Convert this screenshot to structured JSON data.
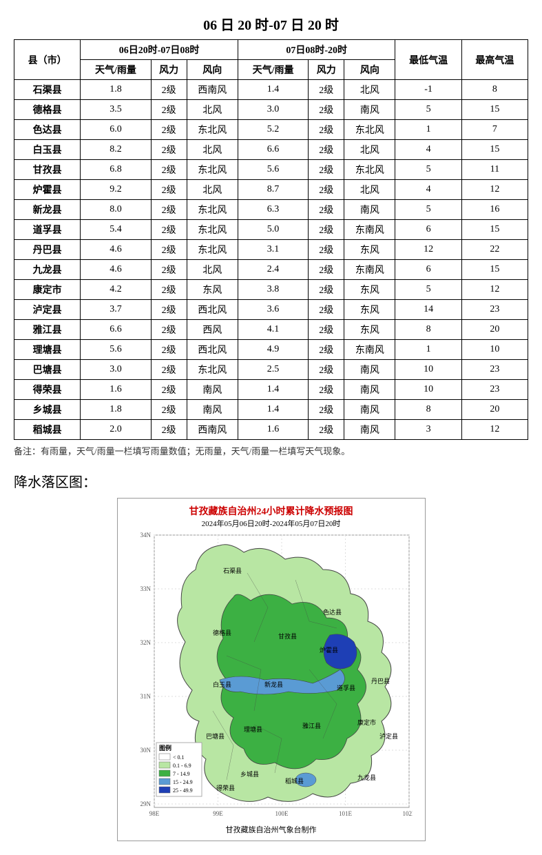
{
  "title": "06 日 20 时-07 日 20 时",
  "table": {
    "headers": {
      "county": "县（市）",
      "period1": "06日20时-07日08时",
      "period2": "07日08时-20时",
      "low": "最低气温",
      "high": "最高气温",
      "weather": "天气/雨量",
      "wind_force": "风力",
      "wind_dir": "风向"
    },
    "rows": [
      {
        "c": "石渠县",
        "w1": "1.8",
        "f1": "2级",
        "d1": "西南风",
        "w2": "1.4",
        "f2": "2级",
        "d2": "北风",
        "lo": "-1",
        "hi": "8"
      },
      {
        "c": "德格县",
        "w1": "3.5",
        "f1": "2级",
        "d1": "北风",
        "w2": "3.0",
        "f2": "2级",
        "d2": "南风",
        "lo": "5",
        "hi": "15"
      },
      {
        "c": "色达县",
        "w1": "6.0",
        "f1": "2级",
        "d1": "东北风",
        "w2": "5.2",
        "f2": "2级",
        "d2": "东北风",
        "lo": "1",
        "hi": "7"
      },
      {
        "c": "白玉县",
        "w1": "8.2",
        "f1": "2级",
        "d1": "北风",
        "w2": "6.6",
        "f2": "2级",
        "d2": "北风",
        "lo": "4",
        "hi": "15"
      },
      {
        "c": "甘孜县",
        "w1": "6.8",
        "f1": "2级",
        "d1": "东北风",
        "w2": "5.6",
        "f2": "2级",
        "d2": "东北风",
        "lo": "5",
        "hi": "11"
      },
      {
        "c": "炉霍县",
        "w1": "9.2",
        "f1": "2级",
        "d1": "北风",
        "w2": "8.7",
        "f2": "2级",
        "d2": "北风",
        "lo": "4",
        "hi": "12"
      },
      {
        "c": "新龙县",
        "w1": "8.0",
        "f1": "2级",
        "d1": "东北风",
        "w2": "6.3",
        "f2": "2级",
        "d2": "南风",
        "lo": "5",
        "hi": "16"
      },
      {
        "c": "道孚县",
        "w1": "5.4",
        "f1": "2级",
        "d1": "东北风",
        "w2": "5.0",
        "f2": "2级",
        "d2": "东南风",
        "lo": "6",
        "hi": "15"
      },
      {
        "c": "丹巴县",
        "w1": "4.6",
        "f1": "2级",
        "d1": "东北风",
        "w2": "3.1",
        "f2": "2级",
        "d2": "东风",
        "lo": "12",
        "hi": "22"
      },
      {
        "c": "九龙县",
        "w1": "4.6",
        "f1": "2级",
        "d1": "北风",
        "w2": "2.4",
        "f2": "2级",
        "d2": "东南风",
        "lo": "6",
        "hi": "15"
      },
      {
        "c": "康定市",
        "w1": "4.2",
        "f1": "2级",
        "d1": "东风",
        "w2": "3.8",
        "f2": "2级",
        "d2": "东风",
        "lo": "5",
        "hi": "12"
      },
      {
        "c": "泸定县",
        "w1": "3.7",
        "f1": "2级",
        "d1": "西北风",
        "w2": "3.6",
        "f2": "2级",
        "d2": "东风",
        "lo": "14",
        "hi": "23"
      },
      {
        "c": "雅江县",
        "w1": "6.6",
        "f1": "2级",
        "d1": "西风",
        "w2": "4.1",
        "f2": "2级",
        "d2": "东风",
        "lo": "8",
        "hi": "20"
      },
      {
        "c": "理塘县",
        "w1": "5.6",
        "f1": "2级",
        "d1": "西北风",
        "w2": "4.9",
        "f2": "2级",
        "d2": "东南风",
        "lo": "1",
        "hi": "10"
      },
      {
        "c": "巴塘县",
        "w1": "3.0",
        "f1": "2级",
        "d1": "东北风",
        "w2": "2.5",
        "f2": "2级",
        "d2": "南风",
        "lo": "10",
        "hi": "23"
      },
      {
        "c": "得荣县",
        "w1": "1.6",
        "f1": "2级",
        "d1": "南风",
        "w2": "1.4",
        "f2": "2级",
        "d2": "南风",
        "lo": "10",
        "hi": "23"
      },
      {
        "c": "乡城县",
        "w1": "1.8",
        "f1": "2级",
        "d1": "南风",
        "w2": "1.4",
        "f2": "2级",
        "d2": "南风",
        "lo": "8",
        "hi": "20"
      },
      {
        "c": "稻城县",
        "w1": "2.0",
        "f1": "2级",
        "d1": "西南风",
        "w2": "1.6",
        "f2": "2级",
        "d2": "南风",
        "lo": "3",
        "hi": "12"
      }
    ]
  },
  "note": "备注：有雨量，天气/雨量一栏填写雨量数值；无雨量，天气/雨量一栏填写天气现象。",
  "section_title": "降水落区图：",
  "map": {
    "title": "甘孜藏族自治州24小时累计降水预报图",
    "subtitle": "2024年05月06日20时-2024年05月07日20时",
    "footer": "甘孜藏族自治州气象台制作",
    "legend_title": "图例",
    "legend": [
      {
        "label": "< 0.1",
        "color": "#ffffff"
      },
      {
        "label": "0.1 - 6.9",
        "color": "#b8e6a3"
      },
      {
        "label": "7 - 14.9",
        "color": "#3cb043"
      },
      {
        "label": "15 - 24.9",
        "color": "#5a9bd4"
      },
      {
        "label": "25 - 49.9",
        "color": "#1e3fb5"
      }
    ],
    "colors": {
      "light_green": "#b8e6a3",
      "green": "#3cb043",
      "dark_green": "#2e7d32",
      "blue": "#5a9bd4",
      "dark_blue": "#1e3fb5",
      "border": "#444",
      "grid": "#ddd"
    },
    "axes": {
      "x_ticks": [
        "98E",
        "99E",
        "100E",
        "101E",
        "102E"
      ],
      "y_ticks": [
        "29N",
        "30N",
        "31N",
        "32N",
        "33N",
        "34N"
      ]
    }
  }
}
